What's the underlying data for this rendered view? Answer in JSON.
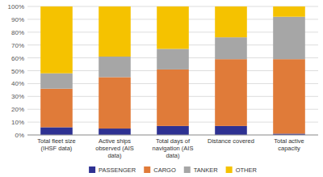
{
  "chart_data": {
    "type": "bar",
    "stacked": true,
    "categories": [
      "Total fleet size\n(IHSF data)",
      "Active ships\nobserved (AIS\ndata)",
      "Total days of\nnavigation (AIS\ndata)",
      "Distance covered",
      "Total active\ncapacity"
    ],
    "series": [
      {
        "name": "PASSENGER",
        "color": "#2e3192",
        "values": [
          6,
          5,
          7,
          7,
          1
        ]
      },
      {
        "name": "CARGO",
        "color": "#e07b39",
        "values": [
          30,
          40,
          44,
          52,
          58
        ]
      },
      {
        "name": "TANKER",
        "color": "#a6a6a6",
        "values": [
          12,
          16,
          16,
          17,
          33
        ]
      },
      {
        "name": "OTHER",
        "color": "#f5c200",
        "values": [
          52,
          39,
          33,
          24,
          8
        ]
      }
    ],
    "ylim": [
      0,
      100
    ],
    "yticks": [
      {
        "value": 0,
        "label": "0%"
      },
      {
        "value": 10,
        "label": "10%"
      },
      {
        "value": 20,
        "label": "20%"
      },
      {
        "value": 30,
        "label": "30%"
      },
      {
        "value": 40,
        "label": "40%"
      },
      {
        "value": 50,
        "label": "50%"
      },
      {
        "value": 60,
        "label": "60%"
      },
      {
        "value": 70,
        "label": "70%"
      },
      {
        "value": 80,
        "label": "80%"
      },
      {
        "value": 90,
        "label": "90%"
      },
      {
        "value": 100,
        "label": "100%"
      }
    ],
    "grid": true,
    "legend": "bottom"
  }
}
